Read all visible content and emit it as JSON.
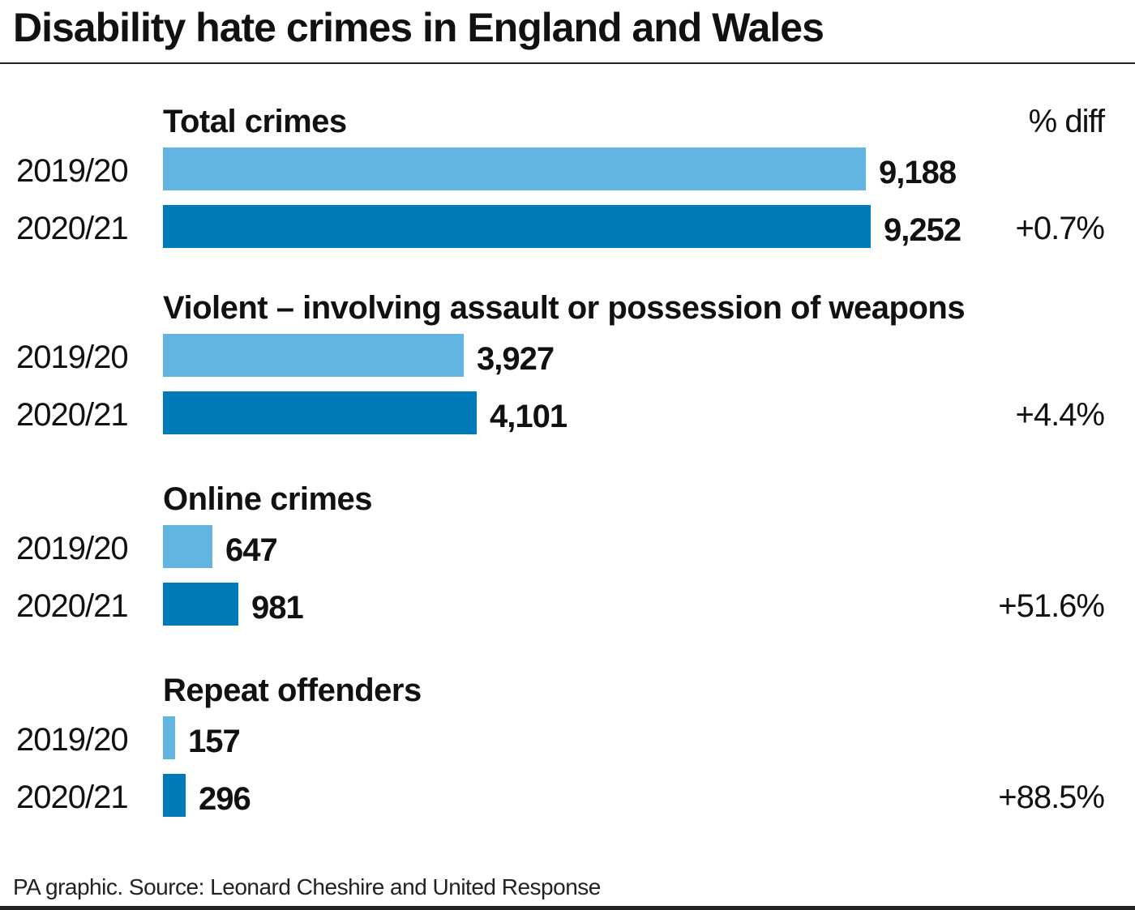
{
  "title": "Disability hate crimes in England and Wales",
  "diff_header": "% diff",
  "source": "PA graphic. Source: Leonard Cheshire and United Response",
  "colors": {
    "bar_2019": "#62b5e0",
    "bar_2020": "#007ab8",
    "text": "#111111",
    "rule": "#222222"
  },
  "chart_data": {
    "type": "bar",
    "orientation": "horizontal",
    "title": "Disability hate crimes in England and Wales",
    "categories": [
      "2019/20",
      "2020/21"
    ],
    "xlim": [
      0,
      10000
    ],
    "grid": false,
    "groups": [
      {
        "heading": "Total crimes",
        "rows": [
          {
            "year": "2019/20",
            "value": 9188,
            "label": "9,188"
          },
          {
            "year": "2020/21",
            "value": 9252,
            "label": "9,252"
          }
        ],
        "diff": "+0.7%"
      },
      {
        "heading": "Violent – involving assault or possession of weapons",
        "rows": [
          {
            "year": "2019/20",
            "value": 3927,
            "label": "3,927"
          },
          {
            "year": "2020/21",
            "value": 4101,
            "label": "4,101"
          }
        ],
        "diff": "+4.4%"
      },
      {
        "heading": "Online crimes",
        "rows": [
          {
            "year": "2019/20",
            "value": 647,
            "label": "647"
          },
          {
            "year": "2020/21",
            "value": 981,
            "label": "981"
          }
        ],
        "diff": "+51.6%"
      },
      {
        "heading": "Repeat offenders",
        "rows": [
          {
            "year": "2019/20",
            "value": 157,
            "label": "157"
          },
          {
            "year": "2020/21",
            "value": 296,
            "label": "296"
          }
        ],
        "diff": "+88.5%"
      }
    ]
  }
}
